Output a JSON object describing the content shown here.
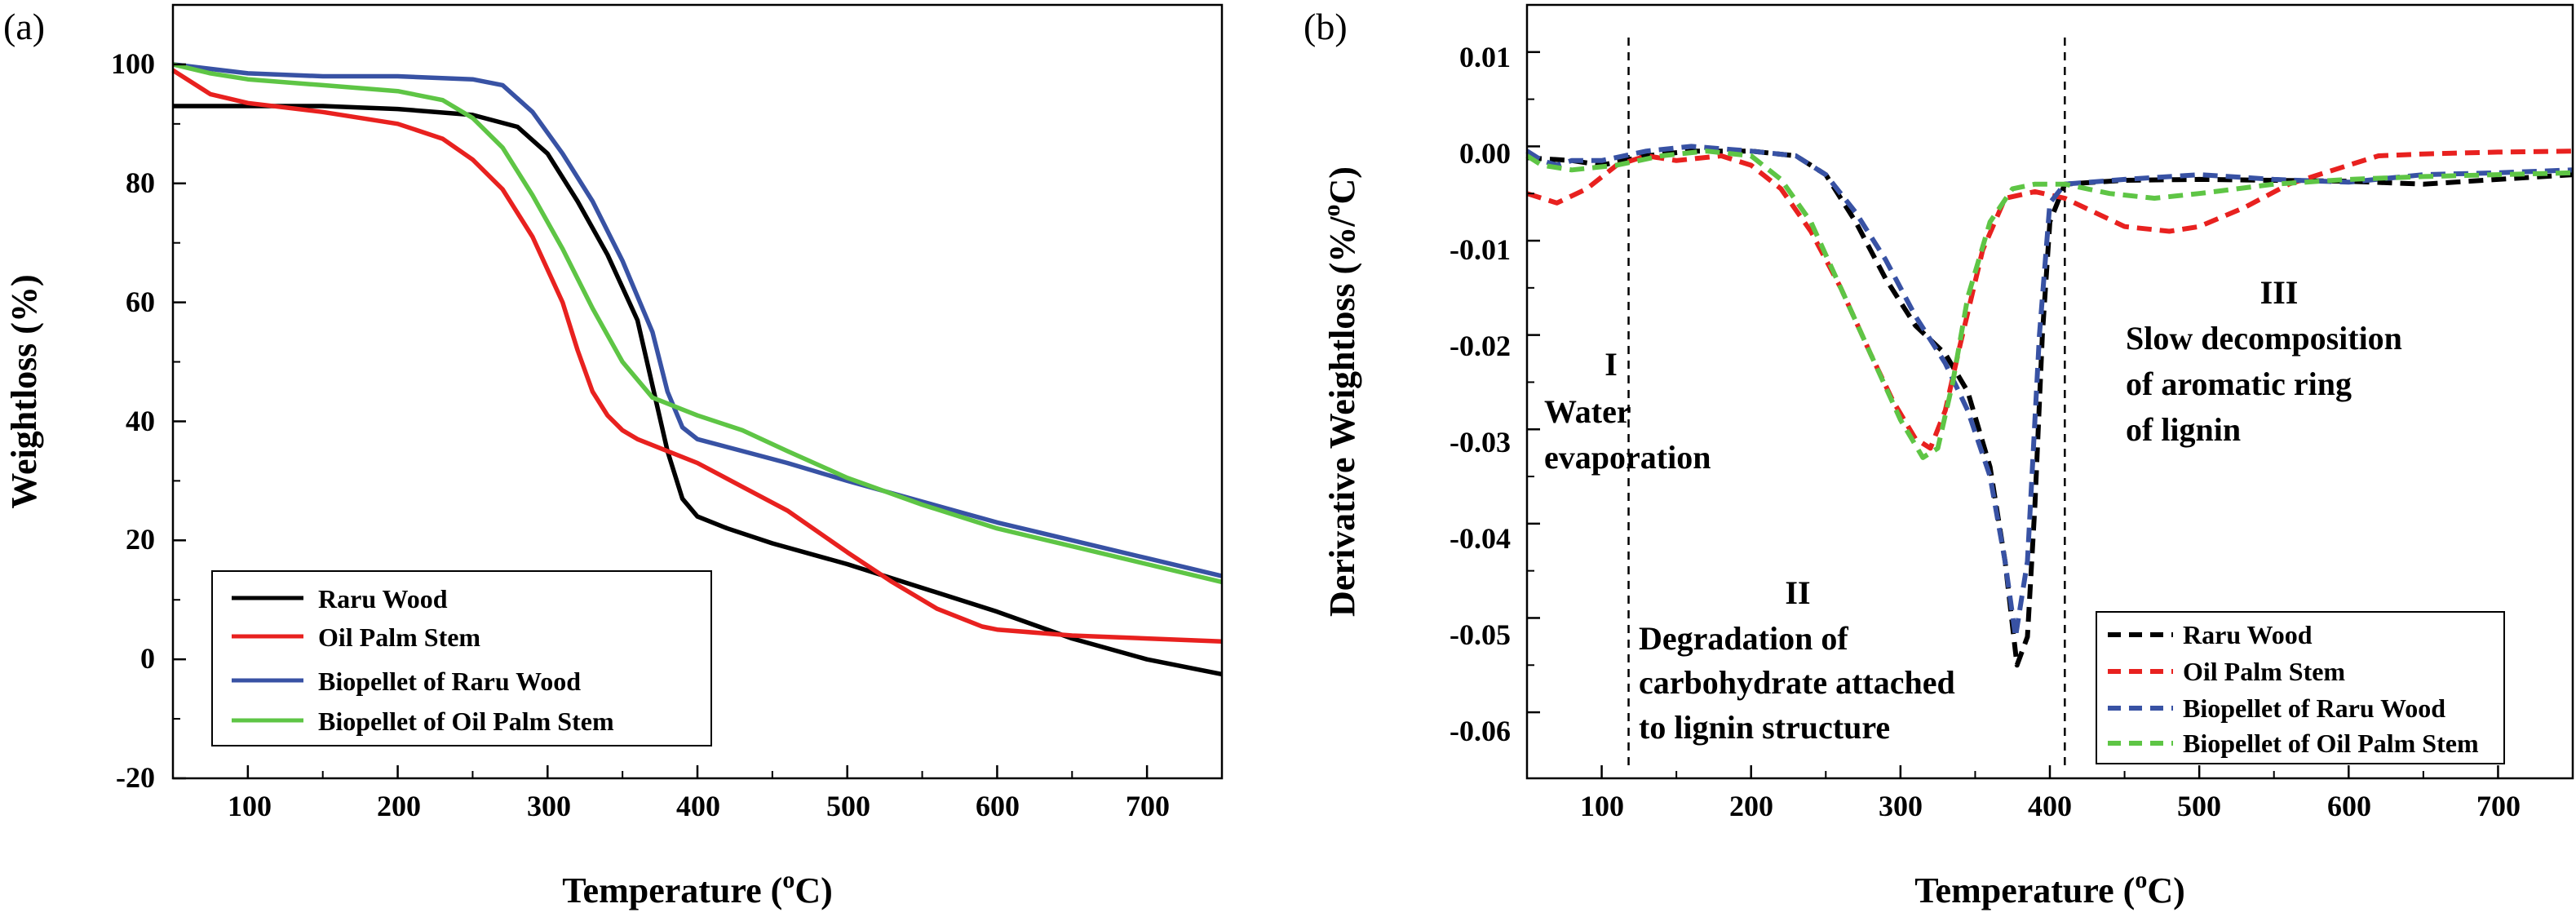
{
  "chart_data": [
    {
      "type": "line",
      "panel_label": "(a)",
      "title": "",
      "xlabel_main": "Temperature (",
      "xlabel_sup": "o",
      "xlabel_tail": "C)",
      "ylabel": "Weightloss (%)",
      "xlim": [
        50,
        750
      ],
      "ylim": [
        -20,
        110
      ],
      "xticks": [
        100,
        200,
        300,
        400,
        500,
        600,
        700
      ],
      "xtick_labels": [
        "100",
        "200",
        "300",
        "400",
        "500",
        "600",
        "700"
      ],
      "yticks": [
        -20,
        0,
        20,
        40,
        60,
        80,
        100
      ],
      "ytick_labels": [
        "-20",
        "0",
        "20",
        "40",
        "60",
        "80",
        "100"
      ],
      "legend_position": "bottom-left",
      "series": [
        {
          "name": "Raru Wood",
          "color": "#000000",
          "dashed": false,
          "x": [
            50,
            100,
            150,
            200,
            250,
            280,
            300,
            320,
            340,
            360,
            370,
            380,
            390,
            400,
            420,
            450,
            500,
            550,
            600,
            650,
            700,
            750
          ],
          "y": [
            93,
            93,
            93,
            92.5,
            91.5,
            89.5,
            85,
            77,
            68,
            57,
            46,
            35,
            27,
            24,
            22,
            19.5,
            16,
            12,
            8,
            3.5,
            0,
            -2.5
          ]
        },
        {
          "name": "Oil Palm Stem",
          "color": "#e8211f",
          "dashed": false,
          "x": [
            50,
            75,
            100,
            150,
            200,
            230,
            250,
            270,
            290,
            310,
            320,
            330,
            340,
            350,
            360,
            380,
            400,
            430,
            460,
            500,
            530,
            560,
            590,
            600,
            650,
            700,
            750
          ],
          "y": [
            99,
            95,
            93.5,
            92,
            90,
            87.5,
            84,
            79,
            71,
            60,
            52,
            45,
            41,
            38.5,
            37,
            35,
            33,
            29,
            25,
            18,
            13,
            8.5,
            5.5,
            5,
            4,
            3.5,
            3
          ]
        },
        {
          "name": "Biopellet of Raru Wood",
          "color": "#3852a4",
          "dashed": false,
          "x": [
            50,
            100,
            150,
            200,
            250,
            270,
            290,
            310,
            330,
            350,
            370,
            380,
            390,
            400,
            430,
            460,
            500,
            550,
            600,
            650,
            700,
            750
          ],
          "y": [
            100,
            98.5,
            98,
            98,
            97.5,
            96.5,
            92,
            85,
            77,
            67,
            55,
            45,
            39,
            37,
            35,
            33,
            30,
            26.5,
            23,
            20,
            17,
            14
          ]
        },
        {
          "name": "Biopellet of Oil Palm Stem",
          "color": "#5ec545",
          "dashed": false,
          "x": [
            50,
            75,
            100,
            150,
            200,
            230,
            250,
            270,
            290,
            310,
            330,
            350,
            370,
            390,
            400,
            430,
            460,
            500,
            550,
            600,
            650,
            700,
            750
          ],
          "y": [
            100,
            98.5,
            97.5,
            96.5,
            95.5,
            94,
            91,
            86,
            78,
            69,
            59,
            50,
            44,
            42,
            41,
            38.5,
            35,
            30.5,
            26,
            22,
            19,
            16,
            13
          ]
        }
      ]
    },
    {
      "type": "line",
      "panel_label": "(b)",
      "title": "",
      "xlabel_main": "Temperature (",
      "xlabel_sup": "o",
      "xlabel_tail": "C)",
      "ylabel_main": "Derivative Weightloss (%/",
      "ylabel_sup": "o",
      "ylabel_tail": "C)",
      "xlim": [
        50,
        750
      ],
      "ylim": [
        -0.067,
        0.015
      ],
      "xticks": [
        100,
        200,
        300,
        400,
        500,
        600,
        700
      ],
      "xtick_labels": [
        "100",
        "200",
        "300",
        "400",
        "500",
        "600",
        "700"
      ],
      "yticks": [
        -0.06,
        -0.05,
        -0.04,
        -0.03,
        -0.02,
        -0.01,
        0.0,
        0.01
      ],
      "ytick_labels": [
        "-0.06",
        "-0.05",
        "-0.04",
        "-0.03",
        "-0.02",
        "-0.01",
        "0.00",
        "0.01"
      ],
      "vertical_lines_x": [
        118,
        410
      ],
      "legend_position": "bottom-right",
      "annotations": [
        {
          "id": "region-1-numeral",
          "text": "I"
        },
        {
          "id": "region-1-line-1",
          "text": "Water"
        },
        {
          "id": "region-1-line-2",
          "text": "evaporation"
        },
        {
          "id": "region-2-numeral",
          "text": "II"
        },
        {
          "id": "region-2-line-1",
          "text": "Degradation of"
        },
        {
          "id": "region-2-line-2",
          "text": "carbohydrate attached"
        },
        {
          "id": "region-2-line-3",
          "text": "to lignin structure"
        },
        {
          "id": "region-3-numeral",
          "text": "III"
        },
        {
          "id": "region-3-line-1",
          "text": "Slow decomposition"
        },
        {
          "id": "region-3-line-2",
          "text": "of aromatic ring"
        },
        {
          "id": "region-3-line-3",
          "text": "of lignin"
        }
      ],
      "series": [
        {
          "name": "Raru Wood",
          "color": "#000000",
          "dashed": true,
          "x": [
            50,
            80,
            100,
            130,
            160,
            200,
            230,
            250,
            270,
            290,
            310,
            330,
            345,
            360,
            370,
            378,
            385,
            390,
            395,
            400,
            410,
            450,
            500,
            550,
            600,
            650,
            700,
            750
          ],
          "y": [
            -0.0012,
            -0.0015,
            -0.002,
            -0.001,
            -0.0005,
            -0.0005,
            -0.001,
            -0.003,
            -0.008,
            -0.014,
            -0.019,
            -0.022,
            -0.026,
            -0.034,
            -0.044,
            -0.055,
            -0.052,
            -0.038,
            -0.02,
            -0.008,
            -0.004,
            -0.0036,
            -0.0035,
            -0.0036,
            -0.0037,
            -0.004,
            -0.0035,
            -0.003
          ]
        },
        {
          "name": "Oil Palm Stem",
          "color": "#e8211f",
          "dashed": true,
          "x": [
            50,
            70,
            90,
            110,
            130,
            150,
            180,
            200,
            220,
            240,
            260,
            280,
            295,
            310,
            320,
            330,
            340,
            355,
            370,
            390,
            410,
            430,
            450,
            480,
            500,
            530,
            560,
            590,
            600,
            620,
            650,
            700,
            750
          ],
          "y": [
            -0.005,
            -0.006,
            -0.0045,
            -0.002,
            -0.001,
            -0.0015,
            -0.001,
            -0.002,
            -0.0045,
            -0.009,
            -0.015,
            -0.022,
            -0.027,
            -0.031,
            -0.032,
            -0.028,
            -0.021,
            -0.011,
            -0.0055,
            -0.0048,
            -0.0055,
            -0.007,
            -0.0085,
            -0.009,
            -0.0085,
            -0.0065,
            -0.004,
            -0.0025,
            -0.002,
            -0.001,
            -0.0008,
            -0.0006,
            -0.0005
          ]
        },
        {
          "name": "Biopellet of Raru Wood",
          "color": "#3852a4",
          "dashed": true,
          "x": [
            50,
            60,
            70,
            80,
            100,
            130,
            160,
            200,
            230,
            250,
            270,
            290,
            310,
            330,
            345,
            360,
            370,
            377,
            385,
            393,
            400,
            410,
            450,
            500,
            550,
            600,
            650,
            700,
            750
          ],
          "y": [
            -0.0005,
            -0.0015,
            -0.002,
            -0.0015,
            -0.0015,
            -0.0005,
            0.0,
            -0.0005,
            -0.001,
            -0.003,
            -0.007,
            -0.012,
            -0.018,
            -0.023,
            -0.028,
            -0.035,
            -0.044,
            -0.052,
            -0.044,
            -0.02,
            -0.006,
            -0.004,
            -0.0035,
            -0.003,
            -0.0035,
            -0.0038,
            -0.003,
            -0.0028,
            -0.0025
          ]
        },
        {
          "name": "Biopellet of Oil Palm Stem",
          "color": "#5ec545",
          "dashed": true,
          "x": [
            50,
            60,
            80,
            110,
            140,
            170,
            200,
            220,
            240,
            260,
            280,
            300,
            315,
            325,
            335,
            345,
            360,
            375,
            390,
            410,
            440,
            470,
            500,
            550,
            600,
            650,
            700,
            750
          ],
          "y": [
            -0.001,
            -0.002,
            -0.0025,
            -0.002,
            -0.001,
            -0.0005,
            -0.001,
            -0.0035,
            -0.008,
            -0.015,
            -0.022,
            -0.029,
            -0.033,
            -0.032,
            -0.025,
            -0.016,
            -0.008,
            -0.0045,
            -0.004,
            -0.004,
            -0.005,
            -0.0055,
            -0.005,
            -0.004,
            -0.0035,
            -0.0032,
            -0.003,
            -0.0028
          ]
        }
      ]
    }
  ]
}
